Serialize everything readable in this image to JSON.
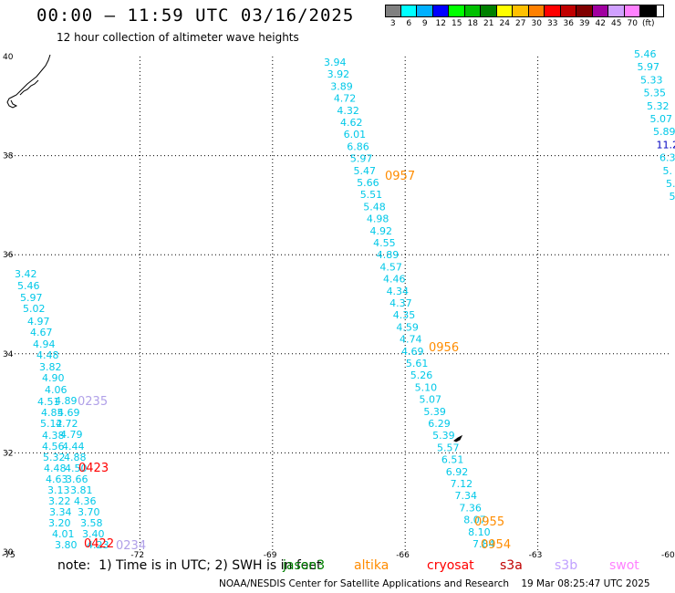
{
  "header": {
    "title": "00:00 – 11:59 UTC 03/16/2025",
    "subtitle": "12 hour collection of altimeter wave heights"
  },
  "colorbar": {
    "swatches": [
      "#808080",
      "#00ffff",
      "#00b0ff",
      "#0000ff",
      "#00ff00",
      "#00c000",
      "#008000",
      "#ffff00",
      "#ffc000",
      "#ff8000",
      "#ff0000",
      "#c00000",
      "#800000",
      "#a000a0",
      "#d0a0ff",
      "#ff80ff",
      "#000000"
    ],
    "labels": [
      "3",
      "6",
      "9",
      "12",
      "15",
      "18",
      "21",
      "24",
      "27",
      "30",
      "33",
      "36",
      "39",
      "42",
      "45",
      "70",
      "(ft)"
    ]
  },
  "axes": {
    "x_ticks": [
      "-75",
      "-72",
      "-69",
      "-66",
      "-63",
      "-60"
    ],
    "y_ticks": [
      "40",
      "38",
      "36",
      "34",
      "32",
      "30"
    ],
    "x_range": [
      -75,
      -60
    ],
    "y_range": [
      30,
      40
    ]
  },
  "tracks": {
    "track_a": [
      "3.94",
      "3.92",
      "3.89",
      "4.72",
      "4.32",
      "4.62",
      "6.01",
      "6.86",
      "5.97",
      "5.47",
      "5.66",
      "5.51",
      "5.48",
      "4.98",
      "4.92",
      "4.55",
      "4.89",
      "4.57",
      "4.46",
      "4.34",
      "4.37",
      "4.35",
      "4.59",
      "4.74",
      "4.69",
      "5.61",
      "5.26",
      "5.10",
      "5.07",
      "5.39",
      "6.29",
      "5.39",
      "5.57",
      "6.51",
      "6.92",
      "7.12",
      "7.34",
      "7.36",
      "8.07",
      "8.10",
      "7.84"
    ],
    "track_b": [
      "5.46",
      "5.97",
      "5.33",
      "5.35",
      "5.32",
      "5.07",
      "5.89",
      "11.29",
      "6.3",
      "5.",
      "5.",
      "5"
    ],
    "track_c": [
      "3.42",
      "5.46",
      "5.97",
      "5.02",
      "4.97",
      "4.67",
      "4.94",
      "4.48",
      "3.82",
      "4.90",
      "4.06",
      "4.51",
      "4.89",
      "4.85",
      "4.69",
      "5.12",
      "4.72",
      "4.38",
      "4.79",
      "4.56",
      "4.44",
      "5.32",
      "4.88",
      "4.48",
      "4.50",
      "4.63",
      "3.66",
      "3.13",
      "3.81",
      "3.22",
      "4.36",
      "3.34",
      "3.70",
      "3.20",
      "3.58",
      "4.01",
      "3.40",
      "3.80",
      "4.23"
    ]
  },
  "pass_times": [
    {
      "text": "0957",
      "color": "#ff8c00"
    },
    {
      "text": "0956",
      "color": "#ff8c00"
    },
    {
      "text": "0955",
      "color": "#ff8c00"
    },
    {
      "text": "0954",
      "color": "#ff8c00"
    },
    {
      "text": "0235",
      "color": "#b0a0e8"
    },
    {
      "text": "0423",
      "color": "#ff0000"
    },
    {
      "text": "0422",
      "color": "#ff0000"
    },
    {
      "text": "0234",
      "color": "#b0a0e8"
    }
  ],
  "note": {
    "text": "note:  1) Time is in UTC; 2) SWH is in feet",
    "sats": [
      {
        "name": "jason3",
        "color": "#008000"
      },
      {
        "name": "altika",
        "color": "#ff8c00"
      },
      {
        "name": "cryosat",
        "color": "#ff0000"
      },
      {
        "name": "s3a",
        "color": "#c00000"
      },
      {
        "name": "s3b",
        "color": "#c0a0ff"
      },
      {
        "name": "swot",
        "color": "#ff80ff"
      }
    ]
  },
  "footer": {
    "text": "NOAA/NESDIS Center for Satellite Applications and Research    19 Mar 08:25:47 UTC 2025"
  }
}
